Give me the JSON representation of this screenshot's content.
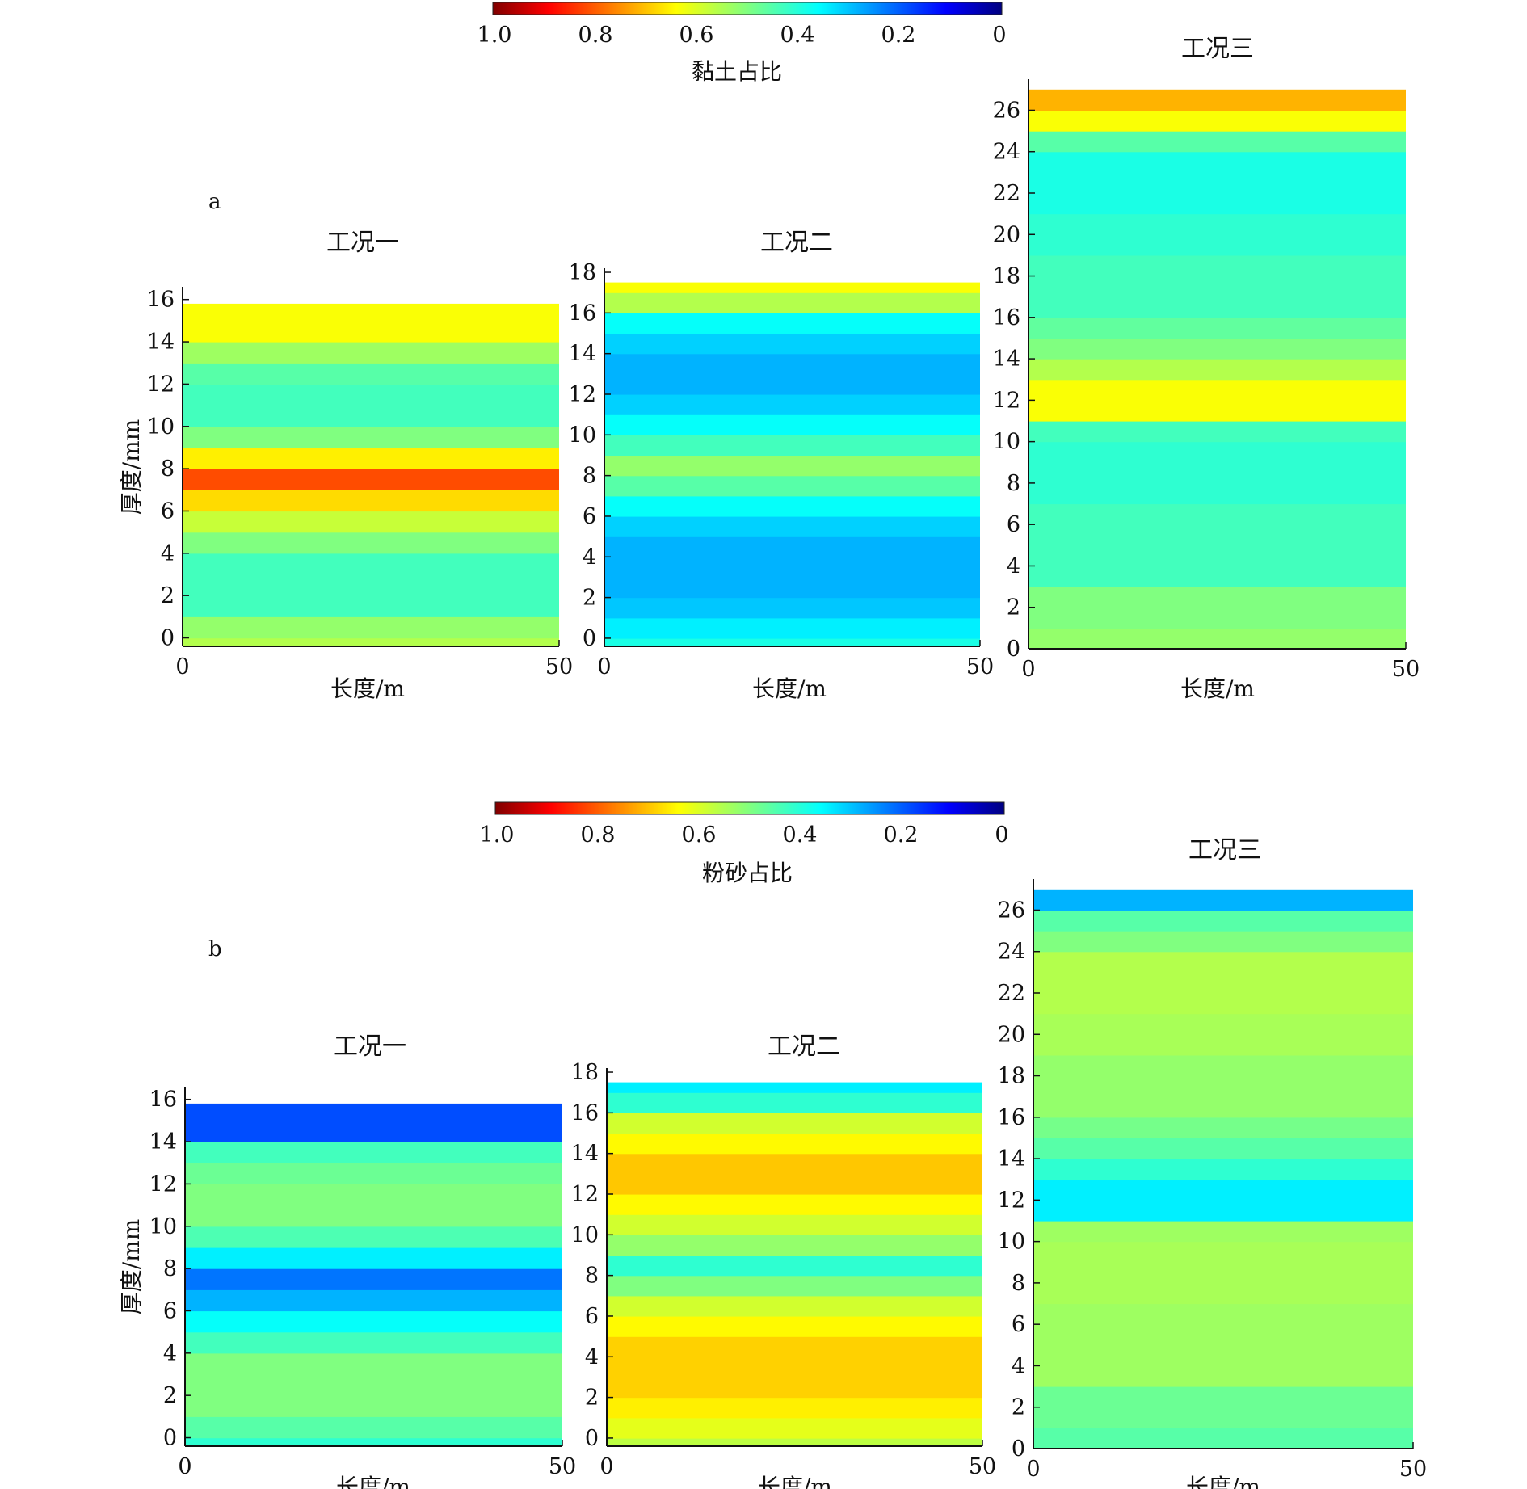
{
  "panels": [
    {
      "letter": "a",
      "colorbar": {
        "label": "黏土占比",
        "ticks": [
          "1.0",
          "0.8",
          "0.6",
          "0.4",
          "0.2",
          "0"
        ],
        "vmin": 0,
        "vmax": 1,
        "colormap": "jet",
        "direction": "reversed"
      },
      "charts": [
        {
          "type": "heatmap",
          "title": "工况一",
          "xlabel": "长度/m",
          "ylabel": "厚度/mm",
          "xticks": [
            "0",
            "50"
          ],
          "xlim": [
            0,
            50
          ],
          "yticks": [
            "0",
            "2",
            "4",
            "6",
            "8",
            "10",
            "12",
            "14",
            "16"
          ],
          "ylim": [
            -0.4,
            16.6
          ],
          "data_top": 15.8,
          "layers": [
            {
              "from": -0.4,
              "to": 0.0,
              "value": 0.55
            },
            {
              "from": 0.0,
              "to": 1.0,
              "value": 0.52
            },
            {
              "from": 1.0,
              "to": 4.0,
              "value": 0.44
            },
            {
              "from": 4.0,
              "to": 5.0,
              "value": 0.5
            },
            {
              "from": 5.0,
              "to": 6.0,
              "value": 0.57
            },
            {
              "from": 6.0,
              "to": 7.0,
              "value": 0.66
            },
            {
              "from": 7.0,
              "to": 8.0,
              "value": 0.8
            },
            {
              "from": 8.0,
              "to": 9.0,
              "value": 0.64
            },
            {
              "from": 9.0,
              "to": 10.0,
              "value": 0.5
            },
            {
              "from": 10.0,
              "to": 12.0,
              "value": 0.44
            },
            {
              "from": 12.0,
              "to": 13.0,
              "value": 0.46
            },
            {
              "from": 13.0,
              "to": 14.0,
              "value": 0.53
            },
            {
              "from": 14.0,
              "to": 15.8,
              "value": 0.62
            }
          ]
        },
        {
          "type": "heatmap",
          "title": "工况二",
          "xlabel": "长度/m",
          "xticks": [
            "0",
            "50"
          ],
          "xlim": [
            0,
            50
          ],
          "yticks": [
            "0",
            "2",
            "4",
            "6",
            "8",
            "10",
            "12",
            "14",
            "16",
            "18"
          ],
          "ylim": [
            -0.4,
            18.2
          ],
          "data_top": 17.5,
          "layers": [
            {
              "from": -0.4,
              "to": 0.0,
              "value": 0.4
            },
            {
              "from": 0.0,
              "to": 1.0,
              "value": 0.36
            },
            {
              "from": 1.0,
              "to": 2.0,
              "value": 0.32
            },
            {
              "from": 2.0,
              "to": 5.0,
              "value": 0.3
            },
            {
              "from": 5.0,
              "to": 6.0,
              "value": 0.33
            },
            {
              "from": 6.0,
              "to": 7.0,
              "value": 0.38
            },
            {
              "from": 7.0,
              "to": 8.0,
              "value": 0.46
            },
            {
              "from": 8.0,
              "to": 9.0,
              "value": 0.52
            },
            {
              "from": 9.0,
              "to": 10.0,
              "value": 0.44
            },
            {
              "from": 10.0,
              "to": 11.0,
              "value": 0.38
            },
            {
              "from": 11.0,
              "to": 12.0,
              "value": 0.33
            },
            {
              "from": 12.0,
              "to": 14.0,
              "value": 0.3
            },
            {
              "from": 14.0,
              "to": 15.0,
              "value": 0.33
            },
            {
              "from": 15.0,
              "to": 16.0,
              "value": 0.38
            },
            {
              "from": 16.0,
              "to": 17.0,
              "value": 0.55
            },
            {
              "from": 17.0,
              "to": 17.5,
              "value": 0.62
            }
          ]
        },
        {
          "type": "heatmap",
          "title": "工况三",
          "xlabel": "长度/m",
          "xticks": [
            "0",
            "50"
          ],
          "xlim": [
            0,
            50
          ],
          "yticks": [
            "0",
            "2",
            "4",
            "6",
            "8",
            "10",
            "12",
            "14",
            "16",
            "18",
            "20",
            "22",
            "24",
            "26"
          ],
          "ylim": [
            0,
            27.5
          ],
          "data_top": 27.0,
          "layers": [
            {
              "from": 0.0,
              "to": 1.0,
              "value": 0.52
            },
            {
              "from": 1.0,
              "to": 3.0,
              "value": 0.5
            },
            {
              "from": 3.0,
              "to": 7.0,
              "value": 0.44
            },
            {
              "from": 7.0,
              "to": 10.0,
              "value": 0.42
            },
            {
              "from": 10.0,
              "to": 11.0,
              "value": 0.44
            },
            {
              "from": 11.0,
              "to": 13.0,
              "value": 0.62
            },
            {
              "from": 13.0,
              "to": 14.0,
              "value": 0.55
            },
            {
              "from": 14.0,
              "to": 15.0,
              "value": 0.5
            },
            {
              "from": 15.0,
              "to": 16.0,
              "value": 0.47
            },
            {
              "from": 16.0,
              "to": 19.0,
              "value": 0.44
            },
            {
              "from": 19.0,
              "to": 21.0,
              "value": 0.42
            },
            {
              "from": 21.0,
              "to": 24.0,
              "value": 0.4
            },
            {
              "from": 24.0,
              "to": 25.0,
              "value": 0.46
            },
            {
              "from": 25.0,
              "to": 26.0,
              "value": 0.62
            },
            {
              "from": 26.0,
              "to": 27.0,
              "value": 0.7
            }
          ]
        }
      ]
    },
    {
      "letter": "b",
      "colorbar": {
        "label": "粉砂占比",
        "ticks": [
          "1.0",
          "0.8",
          "0.6",
          "0.4",
          "0.2",
          "0"
        ],
        "vmin": 0,
        "vmax": 1,
        "colormap": "jet",
        "direction": "reversed"
      },
      "charts": [
        {
          "type": "heatmap",
          "title": "工况一",
          "xlabel": "长度/m",
          "ylabel": "厚度/mm",
          "xticks": [
            "0",
            "50"
          ],
          "xlim": [
            0,
            50
          ],
          "yticks": [
            "0",
            "2",
            "4",
            "6",
            "8",
            "10",
            "12",
            "14",
            "16"
          ],
          "ylim": [
            -0.4,
            16.6
          ],
          "data_top": 15.8,
          "layers": [
            {
              "from": -0.4,
              "to": 0.0,
              "value": 0.42
            },
            {
              "from": 0.0,
              "to": 1.0,
              "value": 0.46
            },
            {
              "from": 1.0,
              "to": 4.0,
              "value": 0.5
            },
            {
              "from": 4.0,
              "to": 5.0,
              "value": 0.44
            },
            {
              "from": 5.0,
              "to": 6.0,
              "value": 0.38
            },
            {
              "from": 6.0,
              "to": 7.0,
              "value": 0.3
            },
            {
              "from": 7.0,
              "to": 8.0,
              "value": 0.24
            },
            {
              "from": 8.0,
              "to": 9.0,
              "value": 0.36
            },
            {
              "from": 9.0,
              "to": 10.0,
              "value": 0.45
            },
            {
              "from": 10.0,
              "to": 12.0,
              "value": 0.5
            },
            {
              "from": 12.0,
              "to": 13.0,
              "value": 0.48
            },
            {
              "from": 13.0,
              "to": 14.0,
              "value": 0.44
            },
            {
              "from": 14.0,
              "to": 15.8,
              "value": 0.2
            }
          ]
        },
        {
          "type": "heatmap",
          "title": "工况二",
          "xlabel": "长度/m",
          "xticks": [
            "0",
            "50"
          ],
          "xlim": [
            0,
            50
          ],
          "yticks": [
            "0",
            "2",
            "4",
            "6",
            "8",
            "10",
            "12",
            "14",
            "16",
            "18"
          ],
          "ylim": [
            -0.4,
            18.2
          ],
          "data_top": 17.5,
          "layers": [
            {
              "from": -0.4,
              "to": 0.0,
              "value": 0.56
            },
            {
              "from": 0.0,
              "to": 1.0,
              "value": 0.6
            },
            {
              "from": 1.0,
              "to": 2.0,
              "value": 0.64
            },
            {
              "from": 2.0,
              "to": 5.0,
              "value": 0.67
            },
            {
              "from": 5.0,
              "to": 6.0,
              "value": 0.63
            },
            {
              "from": 6.0,
              "to": 7.0,
              "value": 0.58
            },
            {
              "from": 7.0,
              "to": 8.0,
              "value": 0.5
            },
            {
              "from": 8.0,
              "to": 9.0,
              "value": 0.42
            },
            {
              "from": 9.0,
              "to": 10.0,
              "value": 0.52
            },
            {
              "from": 10.0,
              "to": 11.0,
              "value": 0.58
            },
            {
              "from": 11.0,
              "to": 12.0,
              "value": 0.63
            },
            {
              "from": 12.0,
              "to": 14.0,
              "value": 0.68
            },
            {
              "from": 14.0,
              "to": 15.0,
              "value": 0.63
            },
            {
              "from": 15.0,
              "to": 16.0,
              "value": 0.58
            },
            {
              "from": 16.0,
              "to": 17.0,
              "value": 0.42
            },
            {
              "from": 17.0,
              "to": 17.5,
              "value": 0.36
            }
          ]
        },
        {
          "type": "heatmap",
          "title": "工况三",
          "xlabel": "长度/m",
          "xticks": [
            "0",
            "50"
          ],
          "xlim": [
            0,
            50
          ],
          "yticks": [
            "0",
            "2",
            "4",
            "6",
            "8",
            "10",
            "12",
            "14",
            "16",
            "18",
            "20",
            "22",
            "24",
            "26"
          ],
          "ylim": [
            0,
            27.5
          ],
          "data_top": 27.0,
          "layers": [
            {
              "from": 0.0,
              "to": 1.0,
              "value": 0.46
            },
            {
              "from": 1.0,
              "to": 3.0,
              "value": 0.48
            },
            {
              "from": 3.0,
              "to": 7.0,
              "value": 0.53
            },
            {
              "from": 7.0,
              "to": 10.0,
              "value": 0.54
            },
            {
              "from": 10.0,
              "to": 11.0,
              "value": 0.53
            },
            {
              "from": 11.0,
              "to": 13.0,
              "value": 0.36
            },
            {
              "from": 13.0,
              "to": 14.0,
              "value": 0.42
            },
            {
              "from": 14.0,
              "to": 15.0,
              "value": 0.46
            },
            {
              "from": 15.0,
              "to": 16.0,
              "value": 0.49
            },
            {
              "from": 16.0,
              "to": 19.0,
              "value": 0.52
            },
            {
              "from": 19.0,
              "to": 21.0,
              "value": 0.54
            },
            {
              "from": 21.0,
              "to": 24.0,
              "value": 0.55
            },
            {
              "from": 24.0,
              "to": 25.0,
              "value": 0.5
            },
            {
              "from": 25.0,
              "to": 26.0,
              "value": 0.46
            },
            {
              "from": 26.0,
              "to": 27.0,
              "value": 0.3
            }
          ]
        }
      ]
    }
  ]
}
